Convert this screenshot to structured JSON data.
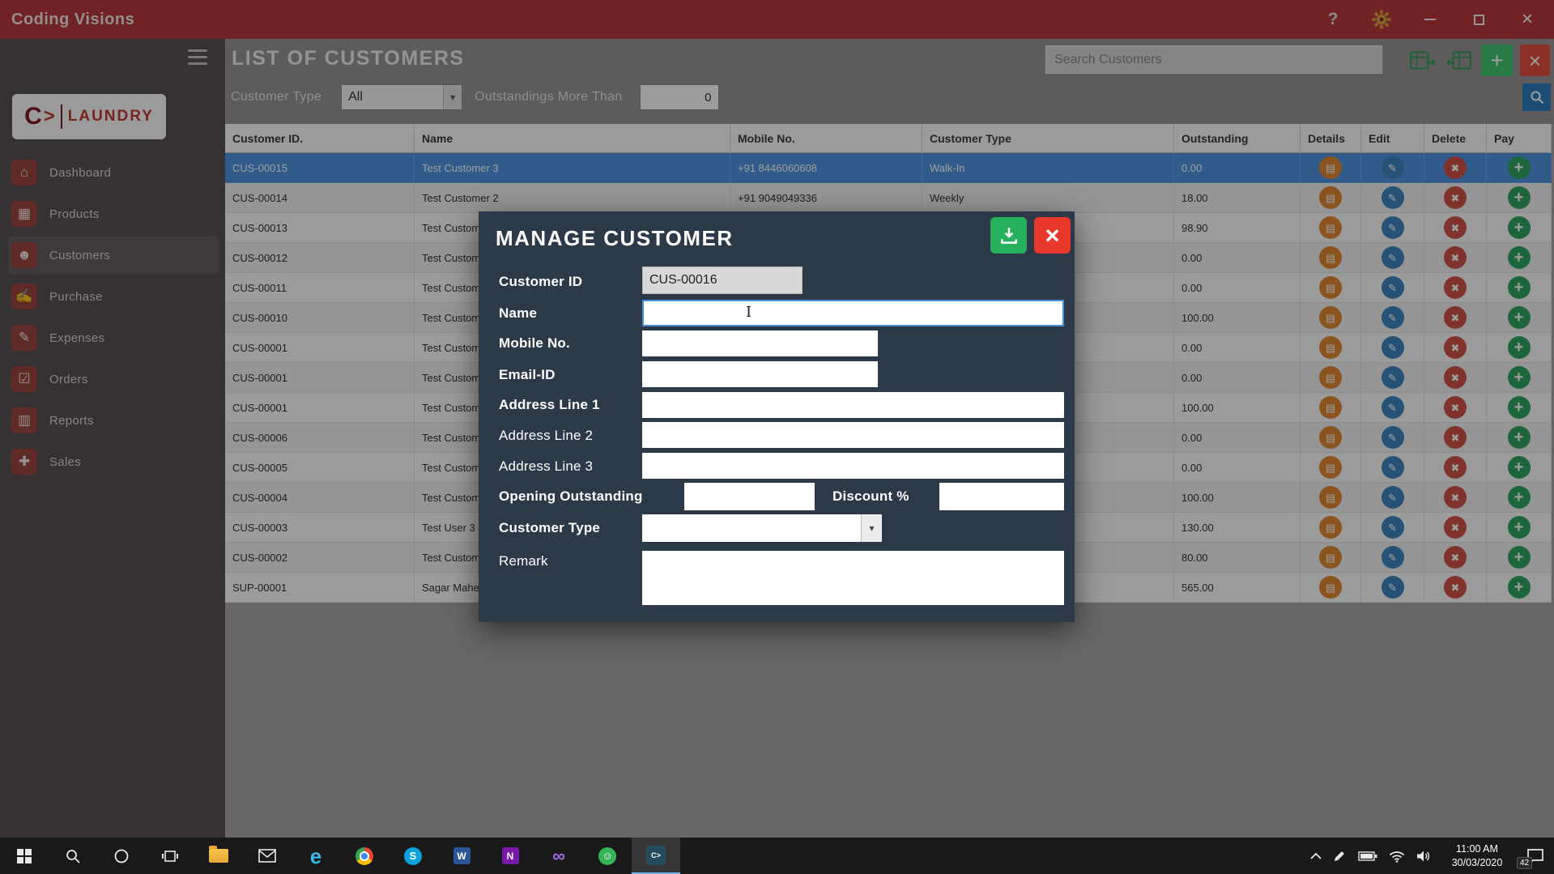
{
  "titlebar": {
    "title": "Coding Visions",
    "help_glyph": "?",
    "close_glyph": "×"
  },
  "sidebar": {
    "logo": {
      "c": "C",
      "gt": ">",
      "rest": "LAUNDRY"
    },
    "items": [
      {
        "label": "Dashboard",
        "icon": "home-icon",
        "glyph": "⌂"
      },
      {
        "label": "Products",
        "icon": "products-icon",
        "glyph": "▦"
      },
      {
        "label": "Customers",
        "icon": "customers-icon",
        "glyph": "☻",
        "active": true
      },
      {
        "label": "Purchase",
        "icon": "purchase-icon",
        "glyph": "✍"
      },
      {
        "label": "Expenses",
        "icon": "expenses-icon",
        "glyph": "✎"
      },
      {
        "label": "Orders",
        "icon": "orders-icon",
        "glyph": "☑"
      },
      {
        "label": "Reports",
        "icon": "reports-icon",
        "glyph": "▥"
      },
      {
        "label": "Sales",
        "icon": "sales-icon",
        "glyph": "✚"
      }
    ]
  },
  "header": {
    "title": "LIST OF CUSTOMERS",
    "search_placeholder": "Search Customers",
    "add_glyph": "+",
    "close_glyph": "×"
  },
  "filters": {
    "customer_type_label": "Customer Type",
    "customer_type_value": "All",
    "outstanding_label": "Outstandings More Than",
    "outstanding_value": "0",
    "arrow_glyph": "▾"
  },
  "table": {
    "columns": [
      "Customer ID.",
      "Name",
      "Mobile No.",
      "Customer Type",
      "Outstanding",
      "Details",
      "Edit",
      "Delete",
      "Pay"
    ],
    "action_glyphs": {
      "details": "▤",
      "edit": "✎",
      "delete": "✖",
      "pay": "+"
    },
    "rows": [
      {
        "id": "CUS-00015",
        "name": "Test Customer 3",
        "mobile": "+91 8446060608",
        "type": "Walk-In",
        "outstanding": "0.00",
        "selected": true
      },
      {
        "id": "CUS-00014",
        "name": "Test Customer 2",
        "mobile": "+91 9049049336",
        "type": "Weekly",
        "outstanding": "18.00"
      },
      {
        "id": "CUS-00013",
        "name": "Test Custome",
        "mobile": "",
        "type": "",
        "outstanding": "98.90"
      },
      {
        "id": "CUS-00012",
        "name": "Test Custome",
        "mobile": "",
        "type": "",
        "outstanding": "0.00"
      },
      {
        "id": "CUS-00011",
        "name": "Test Custome",
        "mobile": "",
        "type": "",
        "outstanding": "0.00"
      },
      {
        "id": "CUS-00010",
        "name": "Test Custome",
        "mobile": "",
        "type": "",
        "outstanding": "100.00"
      },
      {
        "id": "CUS-00001",
        "name": "Test Custome",
        "mobile": "",
        "type": "",
        "outstanding": "0.00"
      },
      {
        "id": "CUS-00001",
        "name": "Test Custome",
        "mobile": "",
        "type": "",
        "outstanding": "0.00"
      },
      {
        "id": "CUS-00001",
        "name": "Test Custome",
        "mobile": "",
        "type": "",
        "outstanding": "100.00"
      },
      {
        "id": "CUS-00006",
        "name": "Test Custome",
        "mobile": "",
        "type": "",
        "outstanding": "0.00"
      },
      {
        "id": "CUS-00005",
        "name": "Test Custome",
        "mobile": "",
        "type": "",
        "outstanding": "0.00"
      },
      {
        "id": "CUS-00004",
        "name": "Test Custome",
        "mobile": "",
        "type": "",
        "outstanding": "100.00"
      },
      {
        "id": "CUS-00003",
        "name": "Test User 3",
        "mobile": "",
        "type": "",
        "outstanding": "130.00"
      },
      {
        "id": "CUS-00002",
        "name": "Test Custome",
        "mobile": "",
        "type": "",
        "outstanding": "80.00"
      },
      {
        "id": "SUP-00001",
        "name": "Sagar Maher",
        "mobile": "",
        "type": "",
        "outstanding": "565.00"
      }
    ]
  },
  "modal": {
    "title": "MANAGE CUSTOMER",
    "close_glyph": "×",
    "customer_id": {
      "label": "Customer ID",
      "value": "CUS-00016"
    },
    "name": {
      "label": "Name",
      "value": ""
    },
    "mobile": {
      "label": "Mobile No.",
      "value": ""
    },
    "email": {
      "label": "Email-ID",
      "value": ""
    },
    "address1": {
      "label": "Address Line 1",
      "value": ""
    },
    "address2": {
      "label": "Address Line 2",
      "value": ""
    },
    "address3": {
      "label": "Address Line 3",
      "value": ""
    },
    "opening_outstanding": {
      "label": "Opening Outstanding",
      "value": ""
    },
    "discount": {
      "label": "Discount %",
      "value": ""
    },
    "customer_type": {
      "label": "Customer Type",
      "value": "",
      "arrow_glyph": "▾"
    },
    "remark": {
      "label": "Remark",
      "value": ""
    }
  },
  "taskbar": {
    "time": "11:00 AM",
    "date": "30/03/2020",
    "notification_badge": "42",
    "glyphs": {
      "skype": "S",
      "word": "W",
      "onenote": "N",
      "edge": "e",
      "vs": "∞",
      "green_app": "☺",
      "app_tile": "C>"
    }
  },
  "colors": {
    "titlebar": "#b5373c",
    "modal_bg": "#2c3949",
    "selected_row": "#4f94e0",
    "save_green": "#27b05e",
    "close_red": "#e8372b",
    "add_green": "#41c46c",
    "details_orange": "#e0872f",
    "edit_blue": "#3e85c0",
    "delete_red": "#cd5348",
    "pay_green": "#2fa360",
    "filter_search_blue": "#2d7dc1"
  }
}
